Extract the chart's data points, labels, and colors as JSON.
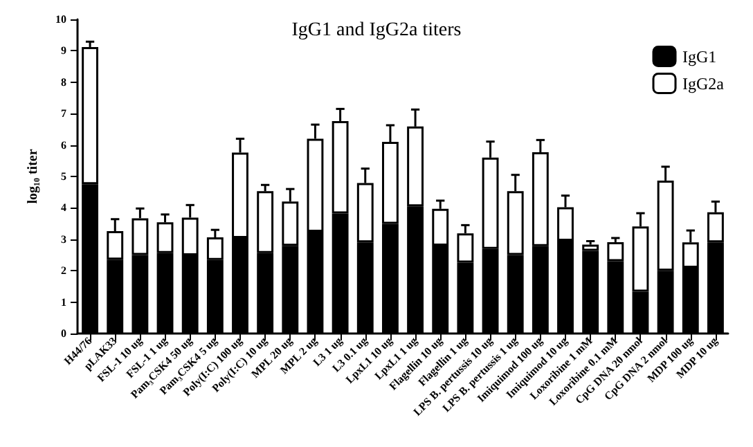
{
  "chart_data": {
    "type": "bar",
    "title": "IgG1 and IgG2a titers",
    "ylabel": "log₁₀ titer",
    "categories": [
      "H44/76",
      "pLAK33",
      "FSL-1 10 ug",
      "FSL-1 1 ug",
      "Pam₃CSK4 50 ug",
      "Pam₃CSK4 5 ug",
      "Poly(I:C) 100 ug",
      "Poly(I:C) 10 ug",
      "MPL 20 ug",
      "MPL 2 ug",
      "L3 1 ug",
      "L3 0.1 ug",
      "LpxL1 10 ug",
      "LpxL1 1 ug",
      "Flagellin 10 ug",
      "Flagellin 1 ug",
      "LPS B. pertussis 10 ug",
      "LPS B. pertussis 1 ug",
      "Imiquimod 100 ug",
      "Imiquimod 10 ug",
      "Loxoribine 1 mM",
      "Loxoribine 0.1 mM",
      "CpG DNA 20 nmol",
      "CpG DNA 2 nmol",
      "MDP 100 ug",
      "MDP 10 ug"
    ],
    "stacked": true,
    "series": [
      {
        "name": "IgG1",
        "color": "#000000",
        "values": [
          4.75,
          2.35,
          2.5,
          2.56,
          2.49,
          2.34,
          3.04,
          2.56,
          2.79,
          3.24,
          3.82,
          2.9,
          3.49,
          4.05,
          2.8,
          2.26,
          2.69,
          2.5,
          2.78,
          2.95,
          2.63,
          2.3,
          1.33,
          2.0,
          2.09,
          2.9
        ]
      },
      {
        "name": "IgG2a",
        "color": "#ffffff",
        "values": [
          4.37,
          0.91,
          1.17,
          0.98,
          1.2,
          0.72,
          2.72,
          1.97,
          1.41,
          2.96,
          2.94,
          1.89,
          2.61,
          2.54,
          1.17,
          0.93,
          2.91,
          2.03,
          2.99,
          1.07,
          0.2,
          0.61,
          2.08,
          2.87,
          0.81,
          0.96
        ],
        "errors": [
          [
            9.12,
            9.29
          ],
          [
            3.26,
            3.64
          ],
          [
            3.67,
            3.98
          ],
          [
            3.54,
            3.79
          ],
          [
            3.69,
            4.09
          ],
          [
            3.06,
            3.3
          ],
          [
            5.76,
            6.2
          ],
          [
            4.53,
            4.73
          ],
          [
            4.2,
            4.6
          ],
          [
            6.2,
            6.65
          ],
          [
            6.76,
            7.15
          ],
          [
            4.79,
            5.25
          ],
          [
            6.1,
            6.63
          ],
          [
            6.59,
            7.13
          ],
          [
            3.97,
            4.23
          ],
          [
            3.19,
            3.45
          ],
          [
            5.6,
            6.11
          ],
          [
            4.53,
            5.05
          ],
          [
            5.77,
            6.16
          ],
          [
            4.02,
            4.39
          ],
          [
            2.83,
            2.94
          ],
          [
            2.91,
            3.04
          ],
          [
            3.41,
            3.83
          ],
          [
            4.87,
            5.31
          ],
          [
            2.9,
            3.28
          ],
          [
            3.86,
            4.2
          ]
        ]
      }
    ],
    "ylim": [
      0,
      10
    ],
    "yticks": [
      0,
      1,
      2,
      3,
      4,
      5,
      6,
      7,
      8,
      9,
      10
    ],
    "grid": false,
    "legend": "top right"
  }
}
